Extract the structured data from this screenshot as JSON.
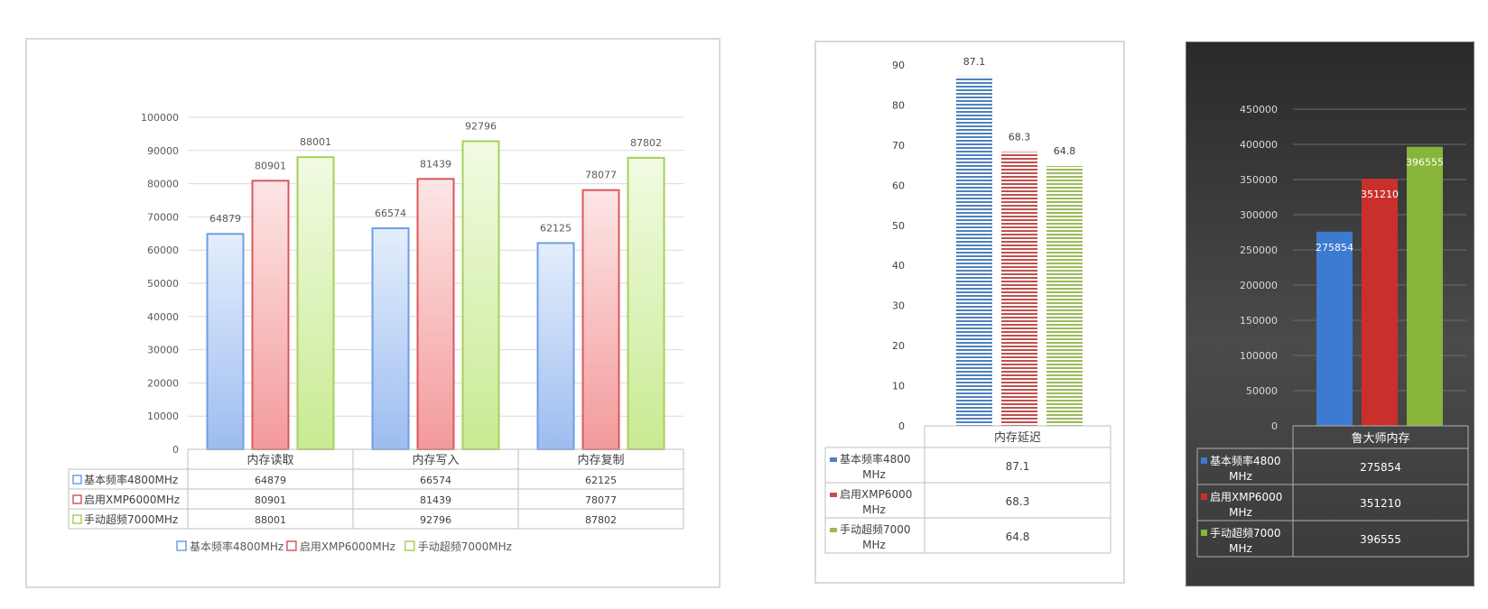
{
  "chart_data": [
    {
      "type": "bar",
      "title": "",
      "categories": [
        "内存读取",
        "内存写入",
        "内存复制"
      ],
      "series": [
        {
          "name": "基本频率4800MHz",
          "values": [
            64879,
            66574,
            62125
          ]
        },
        {
          "name": "启用XMP6000MHz",
          "values": [
            80901,
            81439,
            78077
          ]
        },
        {
          "name": "手动超频7000MHz",
          "values": [
            88001,
            92796,
            87802
          ]
        }
      ],
      "ylim": [
        0,
        100000
      ],
      "yticks": [
        0,
        10000,
        20000,
        30000,
        40000,
        50000,
        60000,
        70000,
        80000,
        90000,
        100000
      ],
      "legend": "bottom",
      "grid": true,
      "data_table": true
    },
    {
      "type": "bar",
      "title": "",
      "categories": [
        "内存延迟"
      ],
      "series": [
        {
          "name": "基本频率4800MHz",
          "values": [
            87.1
          ]
        },
        {
          "name": "启用XMP6000MHz",
          "values": [
            68.3
          ]
        },
        {
          "name": "手动超频7000MHz",
          "values": [
            64.8
          ]
        }
      ],
      "ylim": [
        0,
        90
      ],
      "yticks": [
        0,
        10,
        20,
        30,
        40,
        50,
        60,
        70,
        80,
        90
      ],
      "grid": false,
      "data_table": true
    },
    {
      "type": "bar",
      "title": "",
      "categories": [
        "鲁大师内存"
      ],
      "series": [
        {
          "name": "基本频率4800MHz",
          "values": [
            275854
          ]
        },
        {
          "name": "启用XMP6000MHz",
          "values": [
            351210
          ]
        },
        {
          "name": "手动超频7000MHz",
          "values": [
            396555
          ]
        }
      ],
      "ylim": [
        0,
        450000
      ],
      "yticks": [
        0,
        50000,
        100000,
        150000,
        200000,
        250000,
        300000,
        350000,
        400000,
        450000
      ],
      "grid": true,
      "data_table": true
    }
  ],
  "colors": {
    "c1_blue": "#6f9ee6",
    "c1_red": "#d9595c",
    "c1_green": "#a5d15a",
    "c2_blue": "#4f81bd",
    "c2_red": "#c0504d",
    "c2_green": "#9bbb59",
    "c3_blue": "#3d7ad1",
    "c3_red": "#c9302c",
    "c3_green": "#86b53a"
  }
}
